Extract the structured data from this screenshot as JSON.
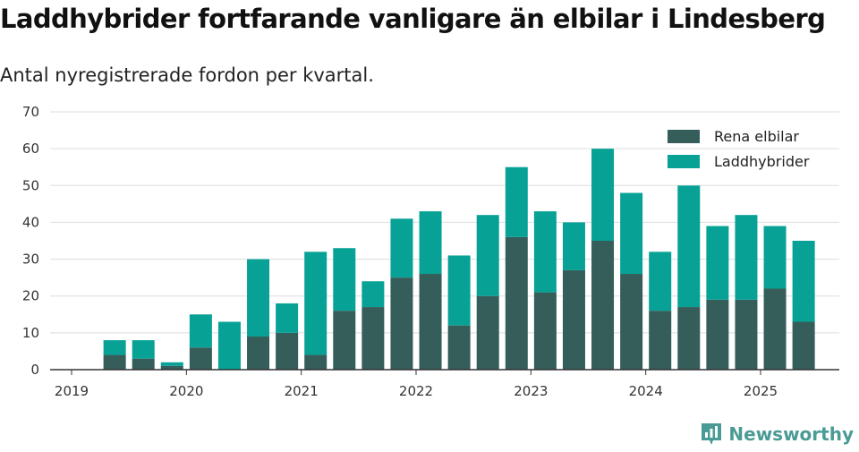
{
  "title": "Laddhybrider fortfarande vanligare än elbilar i Lindesberg",
  "subtitle": "Antal nyregistrerade fordon per kvartal.",
  "brand": "Newsworthy",
  "colors": {
    "rena": "#355d5a",
    "ladd": "#07a295",
    "grid": "#dddddd",
    "axis": "#333333"
  },
  "chart_data": {
    "type": "bar",
    "stacked": true,
    "categories": [
      "2019 Q2",
      "2019 Q3",
      "2019 Q4",
      "2020 Q1",
      "2020 Q2",
      "2020 Q3",
      "2020 Q4",
      "2021 Q1",
      "2021 Q2",
      "2021 Q3",
      "2021 Q4",
      "2022 Q1",
      "2022 Q2",
      "2022 Q3",
      "2022 Q4",
      "2023 Q1",
      "2023 Q2",
      "2023 Q3",
      "2023 Q4",
      "2024 Q1",
      "2024 Q2",
      "2024 Q3",
      "2024 Q4",
      "2025 Q1",
      "2025 Q2"
    ],
    "series": [
      {
        "name": "Rena elbilar",
        "values": [
          4,
          3,
          1,
          6,
          0,
          9,
          10,
          4,
          16,
          17,
          25,
          26,
          12,
          20,
          36,
          21,
          27,
          35,
          26,
          16,
          17,
          19,
          19,
          22,
          13
        ]
      },
      {
        "name": "Laddhybrider",
        "values": [
          4,
          5,
          1,
          9,
          13,
          21,
          8,
          28,
          17,
          7,
          16,
          17,
          19,
          22,
          19,
          22,
          13,
          25,
          22,
          16,
          33,
          20,
          23,
          17,
          22
        ]
      }
    ],
    "x_tick_labels": [
      "2019",
      "2020",
      "2021",
      "2022",
      "2023",
      "2024",
      "2025"
    ],
    "y_ticks": [
      0,
      10,
      20,
      30,
      40,
      50,
      60,
      70
    ],
    "ylim": [
      0,
      70
    ],
    "grid": true,
    "legend_position": "top-right"
  }
}
